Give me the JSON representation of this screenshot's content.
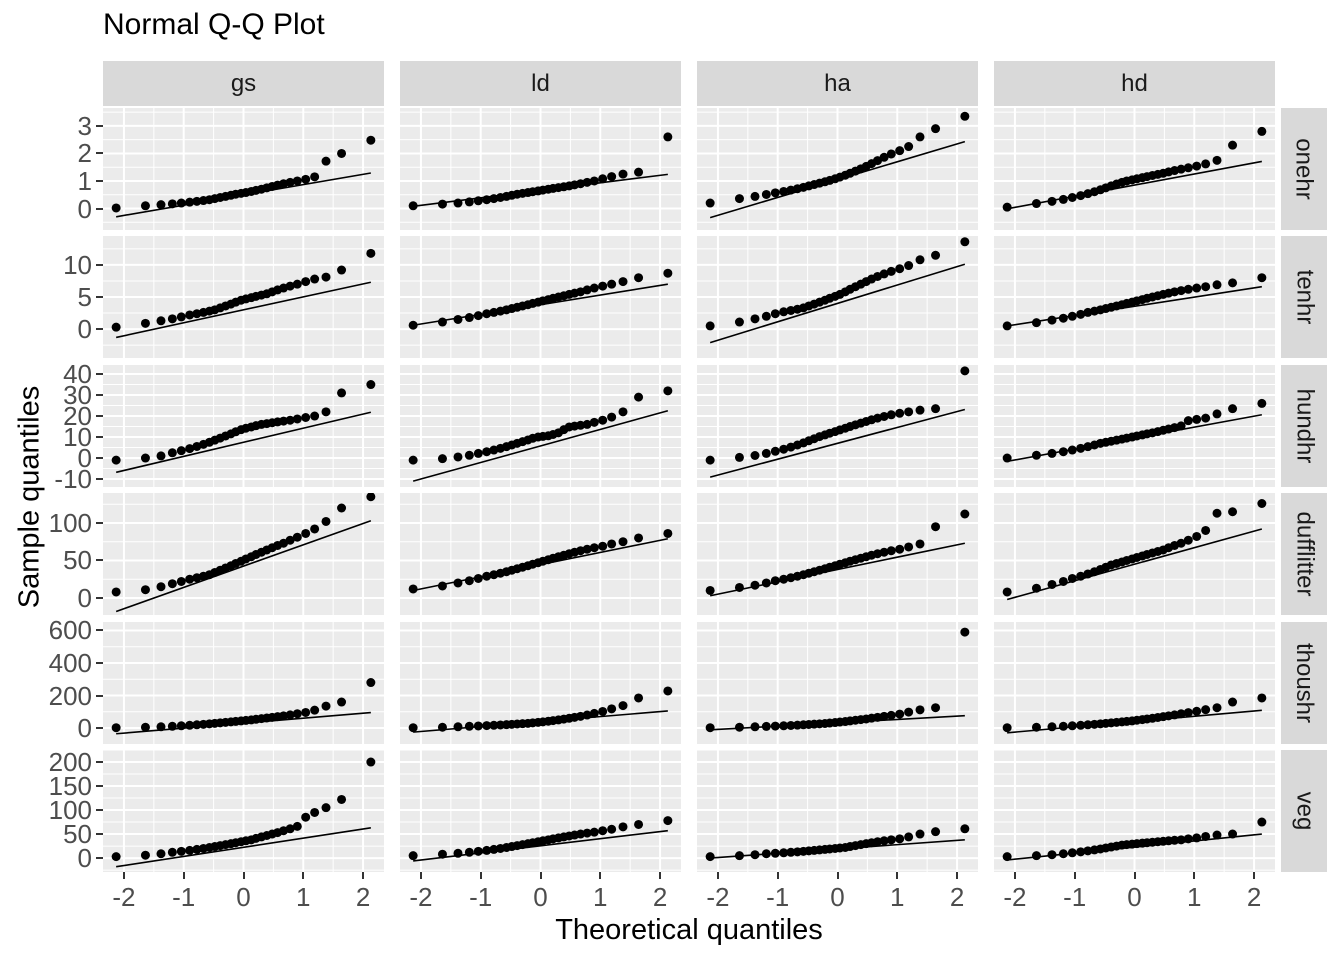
{
  "title": "Normal Q-Q Plot",
  "x_axis": {
    "label": "Theoretical quantiles",
    "ticks": [
      -2,
      -1,
      0,
      1,
      2
    ],
    "range": [
      -2.35,
      2.35
    ]
  },
  "y_axis": {
    "label": "Sample quantiles"
  },
  "style": {
    "panel_bg": "#ebebeb",
    "strip_bg": "#d9d9d9",
    "grid": "#ffffff",
    "point": "#000000",
    "line": "#000000",
    "tick_text": "#4d4d4d",
    "title_text": "#000000",
    "tick_mark": "#333333"
  },
  "chart_data": {
    "type": "scatter",
    "title": "Normal Q-Q Plot",
    "xlabel": "Theoretical quantiles",
    "ylabel": "Sample quantiles",
    "legend": "none",
    "grid": "on",
    "facet_columns": [
      "gs",
      "ld",
      "ha",
      "hd"
    ],
    "facet_rows": [
      {
        "name": "onehr",
        "ticks": [
          0,
          1,
          2,
          3
        ],
        "range": [
          -0.78,
          3.65
        ]
      },
      {
        "name": "tenhr",
        "ticks": [
          0,
          5,
          10
        ],
        "range": [
          -4.5,
          14.5
        ]
      },
      {
        "name": "hundhr",
        "ticks": [
          -10,
          0,
          10,
          20,
          30,
          40
        ],
        "range": [
          -13.8,
          44.3
        ]
      },
      {
        "name": "dufflitter",
        "ticks": [
          0,
          50,
          100
        ],
        "range": [
          -22.7,
          140
        ]
      },
      {
        "name": "thoushr",
        "ticks": [
          0,
          200,
          400,
          600
        ],
        "range": [
          -98,
          652
        ]
      },
      {
        "name": "veg",
        "ticks": [
          0,
          50,
          100,
          150,
          200
        ],
        "range": [
          -29,
          225
        ]
      }
    ],
    "theoretical_quantiles": [
      -2.13,
      -1.64,
      -1.38,
      -1.19,
      -1.04,
      -0.9,
      -0.78,
      -0.67,
      -0.57,
      -0.48,
      -0.39,
      -0.3,
      -0.21,
      -0.13,
      -0.04,
      0.04,
      0.13,
      0.21,
      0.3,
      0.39,
      0.48,
      0.57,
      0.67,
      0.78,
      0.9,
      1.04,
      1.19,
      1.38,
      1.64,
      2.13
    ],
    "qq_line_x": [
      -2.13,
      2.13
    ],
    "facets": [
      {
        "row": "onehr",
        "col": "gs",
        "sample_quantiles": [
          0.02,
          0.1,
          0.14,
          0.17,
          0.2,
          0.23,
          0.26,
          0.29,
          0.32,
          0.36,
          0.4,
          0.44,
          0.48,
          0.52,
          0.55,
          0.58,
          0.62,
          0.66,
          0.7,
          0.75,
          0.8,
          0.85,
          0.9,
          0.95,
          1.0,
          1.06,
          1.15,
          1.72,
          2.0,
          2.48
        ],
        "qq_line_y": [
          -0.3,
          1.29
        ]
      },
      {
        "row": "onehr",
        "col": "ld",
        "sample_quantiles": [
          0.1,
          0.16,
          0.2,
          0.24,
          0.28,
          0.32,
          0.36,
          0.4,
          0.44,
          0.48,
          0.52,
          0.55,
          0.58,
          0.61,
          0.64,
          0.67,
          0.7,
          0.73,
          0.76,
          0.79,
          0.82,
          0.86,
          0.9,
          0.95,
          1.0,
          1.08,
          1.16,
          1.25,
          1.32,
          2.6
        ],
        "qq_line_y": [
          0.08,
          1.24
        ]
      },
      {
        "row": "onehr",
        "col": "ha",
        "sample_quantiles": [
          0.2,
          0.36,
          0.44,
          0.51,
          0.57,
          0.62,
          0.67,
          0.72,
          0.77,
          0.82,
          0.87,
          0.92,
          0.97,
          1.02,
          1.08,
          1.14,
          1.21,
          1.28,
          1.36,
          1.44,
          1.53,
          1.63,
          1.74,
          1.86,
          1.98,
          2.1,
          2.25,
          2.6,
          2.9,
          3.35
        ],
        "qq_line_y": [
          -0.33,
          2.43
        ]
      },
      {
        "row": "onehr",
        "col": "hd",
        "sample_quantiles": [
          0.05,
          0.18,
          0.26,
          0.33,
          0.4,
          0.47,
          0.54,
          0.61,
          0.68,
          0.75,
          0.82,
          0.89,
          0.95,
          1.0,
          1.04,
          1.08,
          1.12,
          1.16,
          1.2,
          1.24,
          1.28,
          1.33,
          1.38,
          1.43,
          1.48,
          1.54,
          1.62,
          1.75,
          2.3,
          2.8
        ],
        "qq_line_y": [
          -0.01,
          1.71
        ]
      },
      {
        "row": "tenhr",
        "col": "gs",
        "sample_quantiles": [
          0.3,
          0.9,
          1.3,
          1.6,
          1.9,
          2.2,
          2.4,
          2.6,
          2.8,
          3.0,
          3.3,
          3.6,
          3.9,
          4.2,
          4.5,
          4.7,
          4.9,
          5.1,
          5.3,
          5.5,
          5.8,
          6.1,
          6.4,
          6.7,
          7.0,
          7.4,
          7.8,
          8.1,
          9.2,
          11.8
        ],
        "qq_line_y": [
          -1.3,
          7.3
        ]
      },
      {
        "row": "tenhr",
        "col": "ld",
        "sample_quantiles": [
          0.6,
          1.1,
          1.5,
          1.8,
          2.1,
          2.4,
          2.6,
          2.8,
          3.0,
          3.2,
          3.4,
          3.6,
          3.8,
          4.0,
          4.2,
          4.4,
          4.6,
          4.8,
          5.0,
          5.2,
          5.4,
          5.6,
          5.8,
          6.1,
          6.4,
          6.7,
          7.0,
          7.4,
          8.0,
          8.7
        ],
        "qq_line_y": [
          0.6,
          7.0
        ]
      },
      {
        "row": "tenhr",
        "col": "ha",
        "sample_quantiles": [
          0.5,
          1.1,
          1.6,
          2.0,
          2.4,
          2.7,
          2.9,
          3.1,
          3.3,
          3.6,
          3.9,
          4.2,
          4.5,
          4.8,
          5.1,
          5.4,
          5.8,
          6.2,
          6.6,
          7.0,
          7.4,
          7.8,
          8.2,
          8.6,
          9.0,
          9.4,
          9.9,
          10.8,
          11.5,
          13.6
        ],
        "qq_line_y": [
          -2.1,
          10.1
        ]
      },
      {
        "row": "tenhr",
        "col": "hd",
        "sample_quantiles": [
          0.5,
          1.0,
          1.4,
          1.7,
          2.0,
          2.3,
          2.6,
          2.8,
          3.0,
          3.2,
          3.4,
          3.6,
          3.8,
          4.0,
          4.2,
          4.4,
          4.6,
          4.8,
          5.0,
          5.2,
          5.4,
          5.6,
          5.8,
          6.0,
          6.2,
          6.4,
          6.6,
          6.9,
          7.2,
          8.0
        ],
        "qq_line_y": [
          0.5,
          6.6
        ]
      },
      {
        "row": "hundhr",
        "col": "gs",
        "sample_quantiles": [
          -1.0,
          0.0,
          1.0,
          2.5,
          3.5,
          4.5,
          5.5,
          6.5,
          7.5,
          8.5,
          9.5,
          10.5,
          11.5,
          12.5,
          13.5,
          14.2,
          14.8,
          15.4,
          16.0,
          16.4,
          16.8,
          17.2,
          17.6,
          18.0,
          18.6,
          19.3,
          20.0,
          22.0,
          31.0,
          35.0
        ],
        "qq_line_y": [
          -6.8,
          21.8
        ]
      },
      {
        "row": "hundhr",
        "col": "ld",
        "sample_quantiles": [
          -1.0,
          -0.3,
          0.5,
          1.3,
          2.2,
          3.0,
          3.8,
          4.6,
          5.4,
          6.2,
          7.0,
          7.8,
          8.6,
          9.4,
          10.0,
          10.3,
          10.6,
          11.2,
          12.0,
          13.5,
          14.8,
          15.2,
          15.6,
          16.0,
          17.0,
          18.0,
          19.5,
          22.0,
          29.0,
          32.0
        ],
        "qq_line_y": [
          -11.0,
          22.5
        ]
      },
      {
        "row": "hundhr",
        "col": "ha",
        "sample_quantiles": [
          -1.0,
          0.3,
          1.2,
          2.2,
          3.2,
          4.2,
          5.2,
          6.2,
          7.2,
          8.2,
          9.2,
          10.2,
          11.0,
          11.8,
          12.6,
          13.4,
          14.2,
          15.0,
          15.8,
          16.6,
          17.4,
          18.2,
          19.0,
          19.8,
          20.6,
          21.3,
          22.0,
          22.8,
          23.5,
          41.5
        ],
        "qq_line_y": [
          -9.1,
          23.1
        ]
      },
      {
        "row": "hundhr",
        "col": "hd",
        "sample_quantiles": [
          0.0,
          1.3,
          2.2,
          3.0,
          3.8,
          4.6,
          5.4,
          6.2,
          7.0,
          7.5,
          8.0,
          8.5,
          9.0,
          9.5,
          10.0,
          10.5,
          11.0,
          11.5,
          12.0,
          12.6,
          13.2,
          13.8,
          14.5,
          15.3,
          17.8,
          18.4,
          19.0,
          21.0,
          23.5,
          26.0
        ],
        "qq_line_y": [
          -1.6,
          20.6
        ]
      },
      {
        "row": "dufflitter",
        "col": "gs",
        "sample_quantiles": [
          8,
          11,
          15,
          19,
          22,
          25,
          27,
          29,
          31,
          34,
          37,
          40,
          43,
          46,
          49,
          52,
          55,
          58,
          61,
          64,
          67,
          70,
          73,
          77,
          81,
          86,
          92,
          102,
          120,
          135
        ],
        "qq_line_y": [
          -18,
          103
        ]
      },
      {
        "row": "dufflitter",
        "col": "ld",
        "sample_quantiles": [
          12,
          16,
          20,
          23,
          26,
          29,
          31,
          33,
          35,
          37,
          39,
          41,
          43,
          45,
          47,
          49,
          51,
          53,
          55,
          57,
          59,
          61,
          63,
          65,
          67,
          69,
          72,
          75,
          80,
          86
        ],
        "qq_line_y": [
          10,
          79
        ]
      },
      {
        "row": "dufflitter",
        "col": "ha",
        "sample_quantiles": [
          10,
          14,
          17,
          20,
          23,
          25,
          27,
          29,
          31,
          33,
          35,
          37,
          39,
          41,
          43,
          45,
          47,
          49,
          51,
          53,
          55,
          57,
          59,
          61,
          63,
          65,
          68,
          72,
          95,
          112
        ],
        "qq_line_y": [
          3,
          73
        ]
      },
      {
        "row": "dufflitter",
        "col": "hd",
        "sample_quantiles": [
          8,
          13,
          18,
          22,
          26,
          29,
          32,
          35,
          38,
          41,
          44,
          46,
          48,
          50,
          52,
          54,
          56,
          58,
          60,
          62,
          64,
          67,
          70,
          73,
          77,
          82,
          90,
          113,
          115,
          126
        ],
        "qq_line_y": [
          -2,
          92
        ]
      },
      {
        "row": "thoushr",
        "col": "gs",
        "sample_quantiles": [
          2,
          5,
          8,
          11,
          14,
          17,
          20,
          23,
          26,
          29,
          32,
          35,
          38,
          41,
          44,
          47,
          50,
          54,
          58,
          62,
          66,
          70,
          75,
          81,
          88,
          96,
          110,
          135,
          160,
          280
        ],
        "qq_line_y": [
          -35,
          95
        ]
      },
      {
        "row": "thoushr",
        "col": "ld",
        "sample_quantiles": [
          2,
          5,
          8,
          11,
          13,
          15,
          17,
          19,
          21,
          23,
          25,
          27,
          29,
          32,
          35,
          38,
          42,
          46,
          50,
          55,
          60,
          66,
          72,
          80,
          90,
          102,
          118,
          138,
          185,
          228
        ],
        "qq_line_y": [
          -25,
          105
        ]
      },
      {
        "row": "thoushr",
        "col": "ha",
        "sample_quantiles": [
          2,
          5,
          8,
          10,
          12,
          14,
          16,
          18,
          20,
          22,
          24,
          26,
          28,
          31,
          34,
          37,
          40,
          44,
          48,
          52,
          56,
          61,
          66,
          72,
          78,
          86,
          98,
          112,
          125,
          590
        ],
        "qq_line_y": [
          -11,
          76
        ]
      },
      {
        "row": "thoushr",
        "col": "hd",
        "sample_quantiles": [
          2,
          5,
          8,
          11,
          14,
          17,
          20,
          23,
          26,
          29,
          32,
          35,
          38,
          41,
          44,
          48,
          52,
          56,
          60,
          65,
          70,
          75,
          81,
          88,
          95,
          103,
          113,
          125,
          160,
          185
        ],
        "qq_line_y": [
          -29,
          109
        ]
      },
      {
        "row": "veg",
        "col": "gs",
        "sample_quantiles": [
          3,
          6,
          9,
          12,
          14,
          16,
          18,
          20,
          22,
          24,
          26,
          28,
          30,
          32,
          34,
          36,
          38,
          41,
          44,
          47,
          50,
          53,
          57,
          61,
          66,
          85,
          95,
          105,
          122,
          200
        ],
        "qq_line_y": [
          -18,
          63
        ]
      },
      {
        "row": "veg",
        "col": "ld",
        "sample_quantiles": [
          5,
          8,
          10,
          12,
          14,
          16,
          18,
          20,
          22,
          24,
          26,
          28,
          30,
          32,
          34,
          36,
          38,
          40,
          42,
          44,
          46,
          48,
          50,
          52,
          54,
          57,
          60,
          65,
          70,
          78
        ],
        "qq_line_y": [
          -6,
          57
        ]
      },
      {
        "row": "veg",
        "col": "ha",
        "sample_quantiles": [
          3,
          5,
          7,
          9,
          10,
          11,
          12,
          13,
          14,
          15,
          16,
          17,
          18,
          19,
          20,
          21,
          22,
          24,
          26,
          28,
          30,
          32,
          34,
          36,
          38,
          40,
          44,
          50,
          55,
          61
        ],
        "qq_line_y": [
          0,
          38
        ]
      },
      {
        "row": "veg",
        "col": "hd",
        "sample_quantiles": [
          3,
          5,
          7,
          9,
          11,
          13,
          15,
          17,
          19,
          21,
          23,
          25,
          27,
          28,
          29,
          30,
          31,
          32,
          33,
          34,
          35,
          36,
          37,
          38,
          40,
          42,
          45,
          48,
          50,
          75
        ],
        "qq_line_y": [
          -4,
          50
        ]
      }
    ]
  }
}
